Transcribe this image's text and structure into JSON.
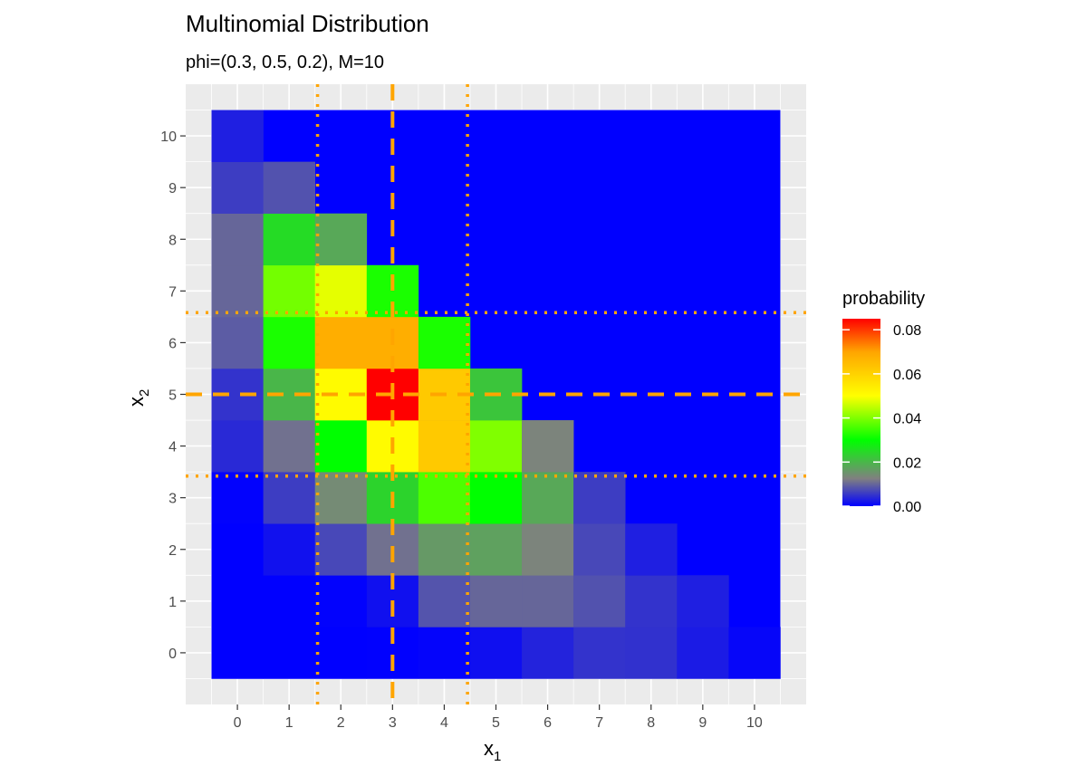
{
  "chart_data": {
    "type": "heatmap",
    "title": "Multinomial Distribution",
    "subtitle": "phi=(0.3, 0.5, 0.2), M=10",
    "xlabel": "x",
    "xlabel_sub": "1",
    "ylabel": "x",
    "ylabel_sub": "2",
    "x_ticks": [
      0,
      1,
      2,
      3,
      4,
      5,
      6,
      7,
      8,
      9,
      10
    ],
    "y_ticks": [
      0,
      1,
      2,
      3,
      4,
      5,
      6,
      7,
      8,
      9,
      10
    ],
    "xlim": [
      -1,
      11
    ],
    "ylim": [
      -1,
      11
    ],
    "grid": true,
    "legend": {
      "title": "probability",
      "position": "right",
      "breaks": [
        0.0,
        0.02,
        0.04,
        0.06,
        0.08
      ],
      "break_labels": [
        "0.00",
        "0.02",
        "0.04",
        "0.06",
        "0.08"
      ],
      "max": 0.085,
      "gradient": [
        "#0000ff",
        "#808080",
        "#00ff00",
        "#ffff00",
        "#ffa500",
        "#ff0000"
      ],
      "gradient_stops": [
        0.0,
        0.0125,
        0.03,
        0.05,
        0.07,
        0.085
      ]
    },
    "cells": [
      {
        "x": 0,
        "y": 0,
        "value": 1e-07
      },
      {
        "x": 1,
        "y": 0,
        "value": 6e-07
      },
      {
        "x": 2,
        "y": 0,
        "value": 9e-06
      },
      {
        "x": 3,
        "y": 0,
        "value": 8e-05
      },
      {
        "x": 4,
        "y": 0,
        "value": 0.00041
      },
      {
        "x": 5,
        "y": 0,
        "value": 0.0015
      },
      {
        "x": 6,
        "y": 0,
        "value": 0.0034
      },
      {
        "x": 7,
        "y": 0,
        "value": 0.005
      },
      {
        "x": 8,
        "y": 0,
        "value": 0.0048
      },
      {
        "x": 9,
        "y": 0,
        "value": 0.0026
      },
      {
        "x": 10,
        "y": 0,
        "value": 0.0006
      },
      {
        "x": 0,
        "y": 1,
        "value": 2e-06
      },
      {
        "x": 1,
        "y": 1,
        "value": 1.7e-05
      },
      {
        "x": 2,
        "y": 1,
        "value": 0.0002
      },
      {
        "x": 3,
        "y": 1,
        "value": 0.0016
      },
      {
        "x": 4,
        "y": 1,
        "value": 0.0082
      },
      {
        "x": 5,
        "y": 1,
        "value": 0.01
      },
      {
        "x": 6,
        "y": 1,
        "value": 0.01
      },
      {
        "x": 7,
        "y": 1,
        "value": 0.008
      },
      {
        "x": 8,
        "y": 1,
        "value": 0.005
      },
      {
        "x": 9,
        "y": 1,
        "value": 0.003
      },
      {
        "x": 0,
        "y": 2,
        "value": 2e-05
      },
      {
        "x": 1,
        "y": 2,
        "value": 0.0017
      },
      {
        "x": 2,
        "y": 2,
        "value": 0.007
      },
      {
        "x": 3,
        "y": 2,
        "value": 0.011
      },
      {
        "x": 4,
        "y": 2,
        "value": 0.016
      },
      {
        "x": 5,
        "y": 2,
        "value": 0.017
      },
      {
        "x": 6,
        "y": 2,
        "value": 0.013
      },
      {
        "x": 7,
        "y": 2,
        "value": 0.007
      },
      {
        "x": 8,
        "y": 2,
        "value": 0.003
      },
      {
        "x": 0,
        "y": 3,
        "value": 0.0002
      },
      {
        "x": 1,
        "y": 3,
        "value": 0.006
      },
      {
        "x": 2,
        "y": 3,
        "value": 0.014
      },
      {
        "x": 3,
        "y": 3,
        "value": 0.024
      },
      {
        "x": 4,
        "y": 3,
        "value": 0.036
      },
      {
        "x": 5,
        "y": 3,
        "value": 0.03
      },
      {
        "x": 6,
        "y": 3,
        "value": 0.018
      },
      {
        "x": 7,
        "y": 3,
        "value": 0.006
      },
      {
        "x": 0,
        "y": 4,
        "value": 0.004
      },
      {
        "x": 1,
        "y": 4,
        "value": 0.011
      },
      {
        "x": 2,
        "y": 4,
        "value": 0.03
      },
      {
        "x": 3,
        "y": 4,
        "value": 0.051
      },
      {
        "x": 4,
        "y": 4,
        "value": 0.062
      },
      {
        "x": 5,
        "y": 4,
        "value": 0.04
      },
      {
        "x": 6,
        "y": 4,
        "value": 0.013
      },
      {
        "x": 0,
        "y": 5,
        "value": 0.005
      },
      {
        "x": 1,
        "y": 5,
        "value": 0.02
      },
      {
        "x": 2,
        "y": 5,
        "value": 0.051
      },
      {
        "x": 3,
        "y": 5,
        "value": 0.085
      },
      {
        "x": 4,
        "y": 5,
        "value": 0.062
      },
      {
        "x": 5,
        "y": 5,
        "value": 0.022
      },
      {
        "x": 0,
        "y": 6,
        "value": 0.009
      },
      {
        "x": 1,
        "y": 6,
        "value": 0.032
      },
      {
        "x": 2,
        "y": 6,
        "value": 0.068
      },
      {
        "x": 3,
        "y": 6,
        "value": 0.068
      },
      {
        "x": 4,
        "y": 6,
        "value": 0.032
      },
      {
        "x": 0,
        "y": 7,
        "value": 0.01
      },
      {
        "x": 1,
        "y": 7,
        "value": 0.039
      },
      {
        "x": 2,
        "y": 7,
        "value": 0.048
      },
      {
        "x": 3,
        "y": 7,
        "value": 0.032
      },
      {
        "x": 0,
        "y": 8,
        "value": 0.01
      },
      {
        "x": 1,
        "y": 8,
        "value": 0.025
      },
      {
        "x": 2,
        "y": 8,
        "value": 0.018
      },
      {
        "x": 0,
        "y": 9,
        "value": 0.006
      },
      {
        "x": 1,
        "y": 9,
        "value": 0.008
      },
      {
        "x": 0,
        "y": 10,
        "value": 0.003
      }
    ],
    "reference_lines": [
      {
        "axis": "x",
        "value": 3,
        "style": "dashed",
        "color": "#ffa500"
      },
      {
        "axis": "x",
        "value": 1.55,
        "style": "dotted",
        "color": "#ffa500"
      },
      {
        "axis": "x",
        "value": 4.45,
        "style": "dotted",
        "color": "#ffa500"
      },
      {
        "axis": "y",
        "value": 5,
        "style": "dashed",
        "color": "#ffa500"
      },
      {
        "axis": "y",
        "value": 3.42,
        "style": "dotted",
        "color": "#ffa500"
      },
      {
        "axis": "y",
        "value": 6.58,
        "style": "dotted",
        "color": "#ffa500"
      }
    ],
    "panel_background": "#ebebeb",
    "grid_color": "#ffffff",
    "fill_color_default": "#0000ff"
  }
}
